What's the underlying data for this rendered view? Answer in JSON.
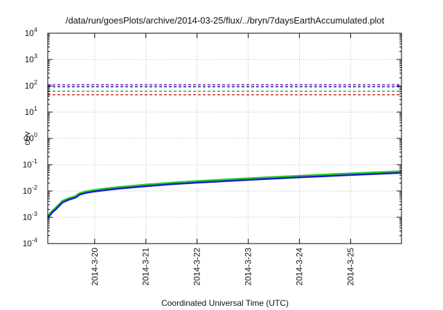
{
  "chart_data": {
    "type": "line",
    "title": "/data/run/goesPlots/archive/2014-03-25/flux/../bryn/7daysEarthAccumulated.plot",
    "xlabel": "Coordinated Universal Time (UTC)",
    "ylabel": "cSv",
    "y_scale": "log",
    "ylim": [
      0.0001,
      10000
    ],
    "y_ticks": [
      {
        "base": "10",
        "exp": "-4"
      },
      {
        "base": "10",
        "exp": "-3"
      },
      {
        "base": "10",
        "exp": "-2"
      },
      {
        "base": "10",
        "exp": "-1"
      },
      {
        "base": "10",
        "exp": "0"
      },
      {
        "base": "10",
        "exp": "1"
      },
      {
        "base": "10",
        "exp": "2"
      },
      {
        "base": "10",
        "exp": "3"
      },
      {
        "base": "10",
        "exp": "4"
      }
    ],
    "xlim": [
      "2014-03-19 02:00",
      "2014-03-25 23:50"
    ],
    "x_ticks": [
      "2014-3-20",
      "2014-3-21",
      "2014-3-22",
      "2014-3-23",
      "2014-3-24",
      "2014-3-25"
    ],
    "grid": true,
    "reference_lines": [
      {
        "value": 110,
        "color": "#7b2fbe"
      },
      {
        "value": 92,
        "color": "#1a1aa8"
      },
      {
        "value": 62,
        "color": "#22b022"
      },
      {
        "value": 46,
        "color": "#e02020"
      }
    ],
    "series": [
      {
        "color": "#22cc22",
        "x": [
          "2014-03-19 02:00",
          "2014-03-19 04:00",
          "2014-03-19 06:00",
          "2014-03-19 09:00",
          "2014-03-19 12:00",
          "2014-03-19 15:00",
          "2014-03-19 17:00",
          "2014-03-19 20:00",
          "2014-03-20 00:00",
          "2014-03-20 06:00",
          "2014-03-20 12:00",
          "2014-03-21 00:00",
          "2014-03-21 12:00",
          "2014-03-22 00:00",
          "2014-03-22 12:00",
          "2014-03-23 00:00",
          "2014-03-23 12:00",
          "2014-03-24 00:00",
          "2014-03-24 12:00",
          "2014-03-25 00:00",
          "2014-03-25 12:00",
          "2014-03-25 23:50"
        ],
        "values": [
          0.0011,
          0.0017,
          0.0024,
          0.0042,
          0.0053,
          0.0063,
          0.0082,
          0.0095,
          0.0108,
          0.0125,
          0.014,
          0.0172,
          0.0205,
          0.0235,
          0.0265,
          0.03,
          0.0335,
          0.0375,
          0.0415,
          0.046,
          0.0505,
          0.0555
        ]
      },
      {
        "color": "#1a1ad0",
        "x": [
          "2014-03-19 02:00",
          "2014-03-19 04:00",
          "2014-03-19 06:00",
          "2014-03-19 09:00",
          "2014-03-19 12:00",
          "2014-03-19 15:00",
          "2014-03-19 17:00",
          "2014-03-19 20:00",
          "2014-03-20 00:00",
          "2014-03-20 06:00",
          "2014-03-20 12:00",
          "2014-03-21 00:00",
          "2014-03-21 12:00",
          "2014-03-22 00:00",
          "2014-03-22 12:00",
          "2014-03-23 00:00",
          "2014-03-23 12:00",
          "2014-03-24 00:00",
          "2014-03-24 12:00",
          "2014-03-25 00:00",
          "2014-03-25 12:00",
          "2014-03-25 23:50"
        ],
        "values": [
          0.00095,
          0.0015,
          0.0021,
          0.0037,
          0.0047,
          0.0056,
          0.0073,
          0.0085,
          0.0096,
          0.011,
          0.0124,
          0.0152,
          0.0181,
          0.0207,
          0.0233,
          0.0264,
          0.0295,
          0.033,
          0.0366,
          0.0405,
          0.0445,
          0.049
        ]
      }
    ]
  }
}
